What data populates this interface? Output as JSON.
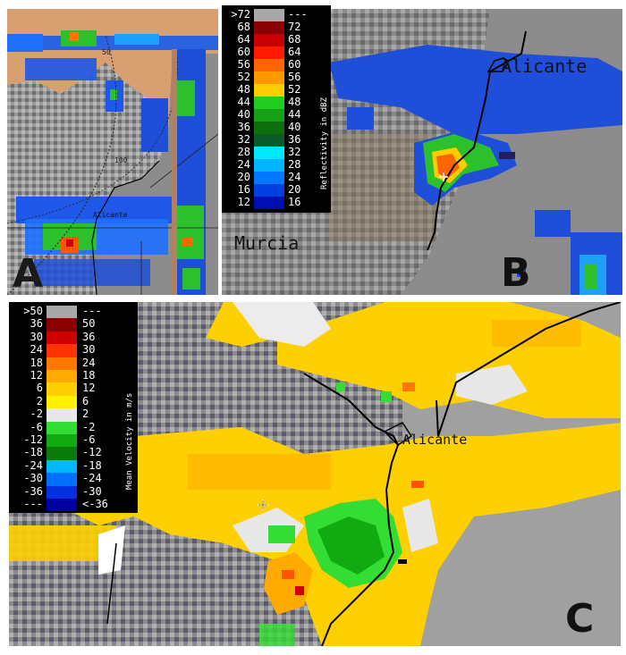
{
  "panels": {
    "a": {
      "letter": "A",
      "city": "Alicante",
      "range_labels": [
        "50",
        "100"
      ]
    },
    "b": {
      "letter": "B",
      "city_north": "Alicante",
      "city_south": "Murcia"
    },
    "c": {
      "letter": "C",
      "city": "Alicante"
    }
  },
  "legend_reflectivity": {
    "title": "Reflectivity in dBZ",
    "rows": [
      {
        "left": ">72",
        "right": "---",
        "color": "#a8a8a8"
      },
      {
        "left": "68",
        "right": "72",
        "color": "#8a0000"
      },
      {
        "left": "64",
        "right": "68",
        "color": "#c80000"
      },
      {
        "left": "60",
        "right": "64",
        "color": "#ff1a00"
      },
      {
        "left": "56",
        "right": "60",
        "color": "#ff6600"
      },
      {
        "left": "52",
        "right": "56",
        "color": "#ff9900"
      },
      {
        "left": "48",
        "right": "52",
        "color": "#ffcc00"
      },
      {
        "left": "44",
        "right": "48",
        "color": "#22cc22"
      },
      {
        "left": "40",
        "right": "44",
        "color": "#15a015"
      },
      {
        "left": "36",
        "right": "40",
        "color": "#0b700b"
      },
      {
        "left": "32",
        "right": "36",
        "color": "#0a5a2a"
      },
      {
        "left": "28",
        "right": "32",
        "color": "#00e8ff"
      },
      {
        "left": "24",
        "right": "28",
        "color": "#00b4ff"
      },
      {
        "left": "20",
        "right": "24",
        "color": "#0078ff"
      },
      {
        "left": "16",
        "right": "20",
        "color": "#0040e0"
      },
      {
        "left": "12",
        "right": "16",
        "color": "#0010b0"
      }
    ]
  },
  "legend_velocity": {
    "title": "Mean Velocity in m/s",
    "rows": [
      {
        "left": ">50",
        "right": "---",
        "color": "#a8a8a8"
      },
      {
        "left": "36",
        "right": "50",
        "color": "#8a0000"
      },
      {
        "left": "30",
        "right": "36",
        "color": "#d00000"
      },
      {
        "left": "24",
        "right": "30",
        "color": "#ff3300"
      },
      {
        "left": "18",
        "right": "24",
        "color": "#ff7700"
      },
      {
        "left": "12",
        "right": "18",
        "color": "#ffaa00"
      },
      {
        "left": "6",
        "right": "12",
        "color": "#ffd000"
      },
      {
        "left": "2",
        "right": "6",
        "color": "#fff000"
      },
      {
        "left": "-2",
        "right": "2",
        "color": "#e8e8e8"
      },
      {
        "left": "-6",
        "right": "-2",
        "color": "#33dd33"
      },
      {
        "left": "-12",
        "right": "-6",
        "color": "#11aa11"
      },
      {
        "left": "-18",
        "right": "-12",
        "color": "#0a7a0a"
      },
      {
        "left": "-24",
        "right": "-18",
        "color": "#00b8ff"
      },
      {
        "left": "-30",
        "right": "-24",
        "color": "#0070ff"
      },
      {
        "left": "-36",
        "right": "-30",
        "color": "#0030e0"
      },
      {
        "left": "---",
        "right": "<-36",
        "color": "#0000a0"
      }
    ]
  }
}
